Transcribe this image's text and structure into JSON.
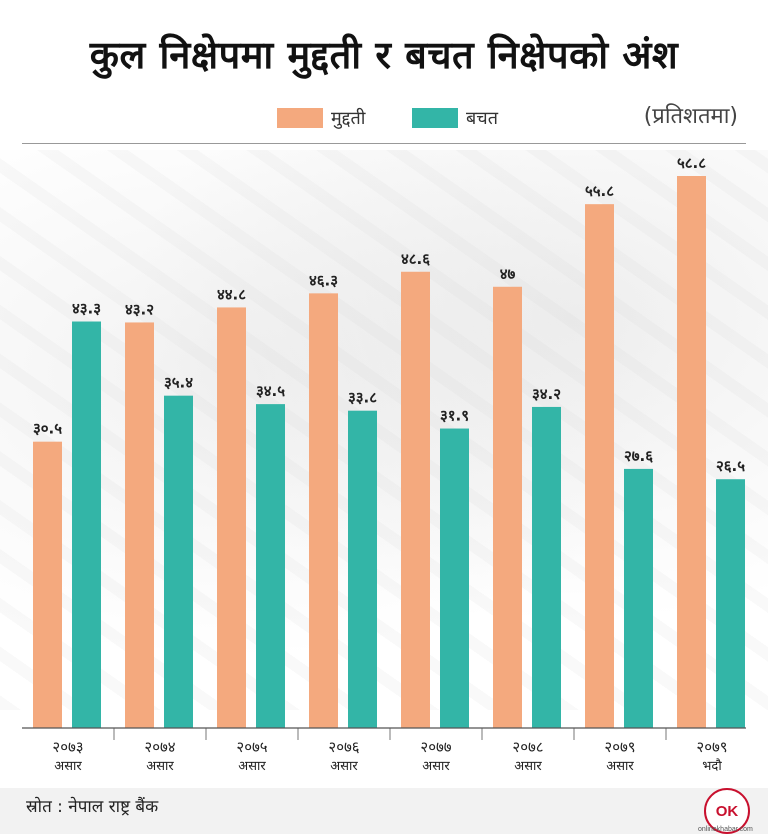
{
  "header": {
    "title": "कुल निक्षेपमा मुद्दती र बचत निक्षेपको अंश",
    "unit": "(प्रतिशतमा)"
  },
  "legend": {
    "items": [
      {
        "label": "मुद्दती",
        "color": "#F4A97E"
      },
      {
        "label": "बचत",
        "color": "#33B5A7"
      }
    ]
  },
  "chart_data": {
    "type": "bar",
    "title": "कुल निक्षेपमा मुद्दती र बचत निक्षेपको अंश",
    "ylabel": "(प्रतिशतमा)",
    "xlabel": "",
    "ylim": [
      0,
      60
    ],
    "categories": [
      {
        "year": "२०७३",
        "month": "असार"
      },
      {
        "year": "२०७४",
        "month": "असार"
      },
      {
        "year": "२०७५",
        "month": "असार"
      },
      {
        "year": "२०७६",
        "month": "असार"
      },
      {
        "year": "२०७७",
        "month": "असार"
      },
      {
        "year": "२०७८",
        "month": "असार"
      },
      {
        "year": "२०७९",
        "month": "असार"
      },
      {
        "year": "२०७९",
        "month": "भदौ"
      }
    ],
    "series": [
      {
        "name": "मुद्दती",
        "color": "#F4A97E",
        "values": [
          30.5,
          43.2,
          44.8,
          46.3,
          48.6,
          47,
          55.8,
          58.8
        ],
        "labels": [
          "३०.५",
          "४३.२",
          "४४.८",
          "४६.३",
          "४८.६",
          "४७",
          "५५.८",
          "५८.८"
        ]
      },
      {
        "name": "बचत",
        "color": "#33B5A7",
        "values": [
          43.3,
          35.4,
          34.5,
          33.8,
          31.9,
          34.2,
          27.6,
          26.5
        ],
        "labels": [
          "४३.३",
          "३५.४",
          "३४.५",
          "३३.८",
          "३१.९",
          "३४.२",
          "२७.६",
          "२६.५"
        ]
      }
    ]
  },
  "footer": {
    "source": "स्रोत : नेपाल राष्ट्र बैंक",
    "logo_text": "OK",
    "logo_sub": "onlinekhabar.com"
  }
}
